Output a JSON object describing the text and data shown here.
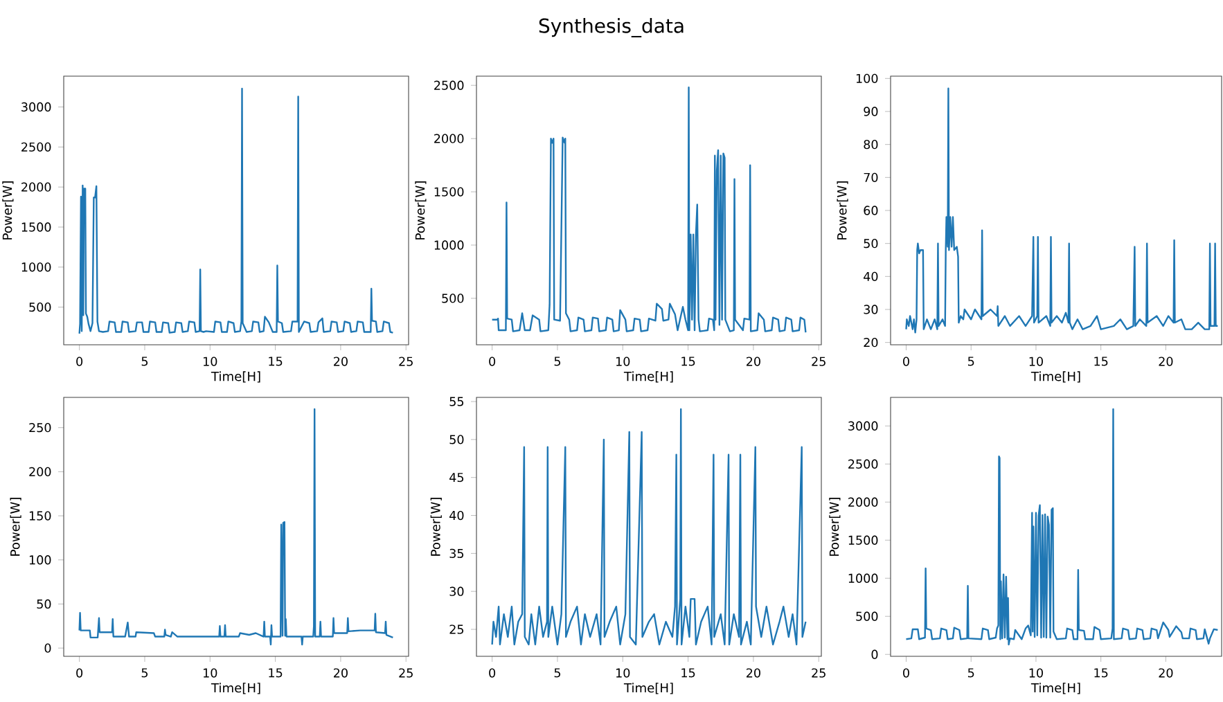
{
  "chart_data": [
    {
      "type": "line",
      "xlabel": "Time[H]",
      "ylabel": "Power[W]",
      "color": "#1f77b4",
      "xlim": [
        -1.2,
        25.2
      ],
      "ylim": [
        30,
        3385
      ],
      "xticks": [
        0,
        5,
        10,
        15,
        20,
        25
      ],
      "yticks": [
        500,
        1000,
        1500,
        2000,
        2500,
        3000
      ],
      "x": [
        0,
        0.05,
        0.12,
        0.18,
        0.25,
        0.3,
        0.35,
        0.45,
        0.5,
        0.6,
        0.7,
        0.85,
        1.0,
        1.1,
        1.2,
        1.3,
        1.38,
        1.5,
        1.8,
        2.2,
        2.3,
        2.7,
        2.8,
        3.2,
        3.3,
        3.7,
        3.8,
        4.3,
        4.4,
        4.8,
        4.9,
        5.3,
        5.4,
        5.8,
        5.9,
        6.3,
        6.4,
        6.8,
        6.9,
        7.3,
        7.4,
        7.8,
        7.9,
        8.3,
        8.4,
        8.8,
        8.9,
        9.2,
        9.25,
        9.3,
        9.5,
        9.7,
        10.3,
        10.4,
        10.8,
        10.9,
        11.3,
        11.4,
        11.8,
        11.9,
        12.3,
        12.4,
        12.45,
        12.5,
        12.8,
        13.2,
        13.3,
        13.7,
        13.8,
        14.1,
        14.2,
        14.5,
        14.8,
        15.1,
        15.15,
        15.2,
        15.5,
        15.6,
        16.2,
        16.3,
        16.7,
        16.75,
        16.8,
        17.2,
        17.6,
        17.7,
        18.2,
        18.3,
        18.6,
        18.7,
        19.2,
        19.3,
        19.7,
        19.8,
        20.2,
        20.3,
        20.7,
        20.8,
        21.2,
        21.3,
        21.7,
        21.8,
        22.3,
        22.35,
        22.4,
        22.7,
        22.8,
        23.2,
        23.3,
        23.7,
        23.8,
        24
      ],
      "values": [
        170,
        290,
        1880,
        200,
        2020,
        400,
        1980,
        1980,
        420,
        380,
        290,
        200,
        300,
        1870,
        1870,
        2010,
        320,
        200,
        190,
        200,
        320,
        310,
        190,
        190,
        320,
        310,
        190,
        200,
        310,
        310,
        190,
        190,
        320,
        310,
        190,
        190,
        310,
        300,
        180,
        190,
        310,
        300,
        190,
        200,
        320,
        310,
        190,
        200,
        970,
        200,
        190,
        200,
        190,
        320,
        310,
        190,
        190,
        320,
        300,
        190,
        200,
        320,
        3230,
        300,
        190,
        200,
        320,
        310,
        190,
        200,
        380,
        310,
        190,
        190,
        1020,
        320,
        300,
        190,
        200,
        320,
        320,
        3130,
        190,
        320,
        300,
        190,
        200,
        310,
        360,
        190,
        200,
        320,
        310,
        190,
        200,
        320,
        300,
        190,
        200,
        320,
        310,
        190,
        190,
        730,
        330,
        320,
        190,
        200,
        320,
        300,
        190,
        180
      ]
    },
    {
      "type": "line",
      "title": "Synthesis_data",
      "xlabel": "Time[H]",
      "ylabel": "Power[W]",
      "color": "#1f77b4",
      "xlim": [
        -1.2,
        25.2
      ],
      "ylim": [
        64,
        2586
      ],
      "xticks": [
        0,
        5,
        10,
        15,
        20,
        25
      ],
      "yticks": [
        500,
        1000,
        1500,
        2000,
        2500
      ],
      "x": [
        0,
        0.4,
        0.45,
        0.5,
        0.9,
        1.05,
        1.1,
        1.15,
        1.5,
        1.6,
        2.1,
        2.3,
        2.5,
        2.9,
        3.1,
        3.6,
        3.7,
        4.3,
        4.4,
        4.5,
        4.6,
        4.7,
        4.75,
        5.2,
        5.4,
        5.55,
        5.6,
        5.65,
        5.9,
        6.0,
        6.5,
        6.6,
        7.0,
        7.1,
        7.6,
        7.7,
        8.1,
        8.2,
        8.7,
        8.8,
        9.2,
        9.3,
        9.7,
        9.8,
        10.2,
        10.3,
        10.8,
        10.9,
        11.3,
        11.4,
        11.9,
        12.0,
        12.5,
        12.6,
        13.0,
        13.1,
        13.5,
        13.6,
        14.0,
        14.2,
        14.6,
        14.8,
        15.0,
        15.05,
        15.1,
        15.2,
        15.3,
        15.4,
        15.5,
        15.6,
        15.7,
        15.8,
        15.9,
        16.5,
        16.6,
        16.9,
        17.0,
        17.05,
        17.1,
        17.2,
        17.3,
        17.4,
        17.5,
        17.6,
        17.7,
        17.8,
        17.85,
        18.2,
        18.5,
        18.55,
        18.6,
        19.2,
        19.3,
        19.7,
        19.75,
        19.8,
        20.3,
        20.4,
        20.8,
        20.9,
        21.4,
        21.5,
        21.9,
        22.0,
        22.4,
        22.5,
        22.9,
        23.0,
        23.5,
        23.6,
        23.9,
        24
      ],
      "values": [
        300,
        300,
        310,
        200,
        200,
        200,
        1400,
        310,
        300,
        190,
        200,
        360,
        200,
        200,
        340,
        300,
        190,
        200,
        440,
        2000,
        1960,
        2000,
        300,
        290,
        2010,
        1960,
        2000,
        360,
        300,
        190,
        200,
        320,
        300,
        190,
        200,
        320,
        310,
        190,
        200,
        320,
        300,
        190,
        200,
        390,
        300,
        190,
        200,
        310,
        300,
        190,
        200,
        310,
        290,
        450,
        400,
        290,
        300,
        450,
        350,
        200,
        420,
        300,
        200,
        2480,
        200,
        1100,
        300,
        1100,
        200,
        1100,
        1380,
        300,
        190,
        200,
        310,
        300,
        200,
        1840,
        300,
        1700,
        1890,
        250,
        1840,
        300,
        1860,
        1820,
        300,
        190,
        200,
        1620,
        300,
        200,
        310,
        300,
        1750,
        190,
        200,
        360,
        300,
        190,
        200,
        320,
        300,
        190,
        200,
        320,
        300,
        190,
        200,
        320,
        300,
        180
      ]
    },
    {
      "type": "line",
      "xlabel": "Time[H]",
      "ylabel": "Power[W]",
      "color": "#1f77b4",
      "xlim": [
        -1.2,
        24.3
      ],
      "ylim": [
        19.3,
        100.7
      ],
      "xticks": [
        0,
        5,
        10,
        15,
        20
      ],
      "yticks": [
        20,
        30,
        40,
        50,
        60,
        70,
        80,
        90,
        100
      ],
      "x": [
        0,
        0.05,
        0.2,
        0.3,
        0.5,
        0.6,
        0.7,
        0.8,
        0.85,
        0.9,
        1.0,
        1.1,
        1.3,
        1.35,
        1.6,
        1.9,
        2.2,
        2.4,
        2.45,
        2.5,
        2.8,
        3.0,
        3.05,
        3.1,
        3.2,
        3.25,
        3.3,
        3.4,
        3.5,
        3.6,
        3.7,
        3.9,
        4.0,
        4.05,
        4.2,
        4.4,
        4.5,
        5.0,
        5.3,
        5.8,
        5.85,
        5.9,
        6.5,
        7.0,
        7.05,
        7.1,
        7.6,
        8.0,
        8.7,
        9.2,
        9.7,
        9.8,
        9.85,
        10.1,
        10.15,
        10.2,
        10.8,
        11.1,
        11.15,
        11.2,
        11.6,
        12.0,
        12.3,
        12.5,
        12.55,
        12.6,
        12.8,
        13.2,
        13.6,
        14.2,
        14.7,
        15.0,
        16.0,
        16.5,
        17.0,
        17.5,
        17.6,
        17.65,
        18.0,
        18.5,
        18.55,
        18.6,
        19.3,
        19.8,
        20.2,
        20.6,
        20.65,
        20.7,
        21.2,
        21.5,
        22.0,
        22.5,
        23.0,
        23.35,
        23.4,
        23.45,
        23.75,
        23.8,
        23.85,
        24
      ],
      "values": [
        24,
        27,
        25,
        28,
        24,
        27,
        23,
        27,
        48,
        50,
        47,
        48,
        48,
        24,
        27,
        24,
        27,
        24,
        50,
        25,
        27,
        25,
        48,
        58,
        49,
        97,
        48,
        58,
        49,
        58,
        48,
        49,
        46,
        26,
        28,
        27,
        30,
        27,
        30,
        27,
        54,
        28,
        30,
        28,
        31,
        25,
        28,
        25,
        28,
        25,
        28,
        52,
        26,
        28,
        52,
        26,
        28,
        25,
        52,
        26,
        28,
        26,
        29,
        26,
        50,
        26,
        24,
        27,
        24,
        25,
        28,
        24,
        25,
        27,
        24,
        25,
        49,
        25,
        27,
        25,
        50,
        26,
        28,
        25,
        28,
        26,
        51,
        26,
        27,
        24,
        24,
        26,
        24,
        24,
        50,
        25,
        25,
        50,
        25,
        25
      ]
    },
    {
      "type": "line",
      "xlabel": "Time[H]",
      "ylabel": "Power[W]",
      "color": "#1f77b4",
      "xlim": [
        -1.2,
        25.2
      ],
      "ylim": [
        -9.3,
        284.3
      ],
      "xticks": [
        0,
        5,
        10,
        15,
        20,
        25
      ],
      "yticks": [
        0,
        50,
        100,
        150,
        200,
        250
      ],
      "x": [
        0,
        0.05,
        0.1,
        0.8,
        0.85,
        1.4,
        1.5,
        1.55,
        2.5,
        2.55,
        2.6,
        3.5,
        3.7,
        3.8,
        4.3,
        4.35,
        5.7,
        5.8,
        6.5,
        6.55,
        6.6,
        7.0,
        7.1,
        7.5,
        10.7,
        10.75,
        10.8,
        11.1,
        11.15,
        11.2,
        12.2,
        12.3,
        13.0,
        13.5,
        14.1,
        14.15,
        14.2,
        14.6,
        14.65,
        14.7,
        14.75,
        15.4,
        15.45,
        15.55,
        15.6,
        15.7,
        15.75,
        15.8,
        15.85,
        17.0,
        17.05,
        17.1,
        17.9,
        17.95,
        18.0,
        18.05,
        18.4,
        18.45,
        18.5,
        19.4,
        19.45,
        19.5,
        20.5,
        20.55,
        20.6,
        21.5,
        22.6,
        22.65,
        22.7,
        23.4,
        23.45,
        23.5,
        24
      ],
      "values": [
        20,
        40,
        20,
        20,
        12,
        12,
        34,
        18,
        18,
        33,
        13,
        13,
        29,
        13,
        13,
        18,
        17,
        13,
        13,
        21,
        15,
        13,
        18,
        13,
        13,
        25,
        13,
        13,
        26,
        13,
        13,
        17,
        15,
        17,
        13,
        30,
        13,
        13,
        4,
        26,
        13,
        13,
        140,
        14,
        142,
        143,
        14,
        33,
        13,
        13,
        4,
        13,
        13,
        25,
        271,
        13,
        13,
        30,
        13,
        13,
        34,
        17,
        17,
        34,
        19,
        20,
        20,
        39,
        18,
        17,
        30,
        15,
        12
      ]
    },
    {
      "type": "line",
      "xlabel": "Time[H]",
      "ylabel": "Power[W]",
      "color": "#1f77b4",
      "xlim": [
        -1.2,
        25.2
      ],
      "ylim": [
        21.45,
        55.55
      ],
      "xticks": [
        0,
        5,
        10,
        15,
        20,
        25
      ],
      "yticks": [
        25,
        30,
        35,
        40,
        45,
        50,
        55
      ],
      "x": [
        0,
        0.1,
        0.3,
        0.5,
        0.6,
        0.9,
        1.2,
        1.5,
        1.7,
        2.0,
        2.3,
        2.45,
        2.5,
        2.8,
        3.0,
        3.3,
        3.6,
        3.9,
        4.2,
        4.25,
        4.3,
        4.6,
        5.0,
        5.3,
        5.6,
        5.65,
        6.0,
        6.5,
        6.8,
        7.1,
        7.5,
        8.0,
        8.3,
        8.55,
        8.6,
        9.0,
        9.5,
        9.8,
        10.2,
        10.5,
        10.55,
        11.0,
        11.45,
        11.5,
        12.0,
        12.4,
        12.8,
        13.3,
        13.8,
        14.0,
        14.1,
        14.15,
        14.4,
        14.45,
        14.5,
        14.8,
        15.1,
        15.2,
        15.5,
        15.6,
        16.0,
        16.5,
        16.8,
        16.95,
        17.0,
        17.5,
        17.8,
        18.1,
        18.15,
        18.5,
        18.9,
        19.0,
        19.05,
        19.5,
        19.8,
        20.15,
        20.2,
        20.6,
        21.0,
        21.5,
        22.0,
        22.3,
        22.7,
        23.0,
        23.3,
        23.7,
        23.75,
        24
      ],
      "values": [
        23,
        26,
        24,
        28,
        23,
        27,
        24,
        28,
        23,
        26,
        27,
        49,
        24,
        23,
        27,
        23,
        28,
        24,
        26,
        49,
        24,
        28,
        23,
        27,
        49,
        24,
        26,
        28,
        23,
        27,
        24,
        27,
        23,
        50,
        24,
        26,
        28,
        23,
        27,
        51,
        24,
        23,
        51,
        24,
        26,
        27,
        23,
        26,
        24,
        28,
        48,
        23,
        29,
        54,
        23,
        28,
        24,
        29,
        29,
        23,
        26,
        28,
        23,
        48,
        24,
        27,
        23,
        48,
        23,
        27,
        24,
        48,
        23,
        26,
        23,
        49,
        28,
        24,
        28,
        23,
        26,
        28,
        24,
        27,
        23,
        49,
        24,
        26
      ]
    },
    {
      "type": "line",
      "xlabel": "Time[H]",
      "ylabel": "Power[W]",
      "color": "#1f77b4",
      "xlim": [
        -1.2,
        24.3
      ],
      "ylim": [
        -25,
        3375
      ],
      "xticks": [
        0,
        5,
        10,
        15,
        20
      ],
      "yticks": [
        0,
        500,
        1000,
        1500,
        2000,
        2500,
        3000
      ],
      "x": [
        0,
        0.4,
        0.5,
        0.9,
        1.0,
        1.45,
        1.5,
        1.55,
        1.9,
        2.0,
        2.6,
        2.7,
        3.1,
        3.2,
        3.6,
        3.7,
        4.1,
        4.2,
        4.7,
        4.75,
        4.8,
        5.8,
        5.9,
        6.3,
        6.4,
        6.9,
        7.0,
        7.1,
        7.15,
        7.2,
        7.25,
        7.3,
        7.4,
        7.5,
        7.6,
        7.7,
        7.8,
        7.85,
        7.9,
        8.0,
        8.3,
        8.4,
        8.9,
        9.2,
        9.4,
        9.6,
        9.7,
        9.75,
        9.8,
        9.9,
        10.0,
        10.1,
        10.2,
        10.3,
        10.4,
        10.5,
        10.6,
        10.7,
        10.8,
        10.9,
        11.0,
        11.1,
        11.2,
        11.3,
        11.35,
        11.6,
        12.3,
        12.4,
        12.8,
        12.9,
        13.2,
        13.25,
        13.3,
        13.7,
        13.8,
        14.4,
        14.5,
        14.9,
        15.0,
        15.8,
        15.9,
        15.95,
        16.0,
        16.6,
        16.7,
        17.1,
        17.2,
        17.7,
        17.8,
        18.2,
        18.3,
        18.8,
        18.9,
        19.3,
        19.4,
        19.8,
        20.2,
        20.3,
        20.8,
        21.2,
        21.3,
        21.8,
        21.9,
        22.3,
        22.4,
        22.9,
        23.0,
        23.3,
        23.4,
        23.7,
        24
      ],
      "values": [
        200,
        210,
        330,
        330,
        200,
        220,
        1130,
        340,
        320,
        200,
        210,
        340,
        320,
        200,
        210,
        350,
        320,
        200,
        210,
        900,
        210,
        200,
        340,
        320,
        200,
        220,
        340,
        380,
        2600,
        2580,
        200,
        960,
        210,
        1050,
        220,
        1020,
        200,
        740,
        130,
        210,
        200,
        320,
        200,
        340,
        380,
        250,
        1860,
        300,
        1680,
        230,
        1860,
        250,
        1820,
        1960,
        220,
        1830,
        230,
        1840,
        220,
        1810,
        1700,
        220,
        1900,
        1920,
        300,
        200,
        210,
        340,
        320,
        200,
        200,
        1110,
        320,
        310,
        200,
        200,
        360,
        320,
        200,
        210,
        340,
        3220,
        200,
        210,
        340,
        320,
        200,
        210,
        340,
        320,
        200,
        210,
        340,
        320,
        210,
        420,
        320,
        230,
        370,
        290,
        210,
        210,
        340,
        320,
        200,
        210,
        330,
        140,
        210,
        330,
        320
      ]
    }
  ]
}
